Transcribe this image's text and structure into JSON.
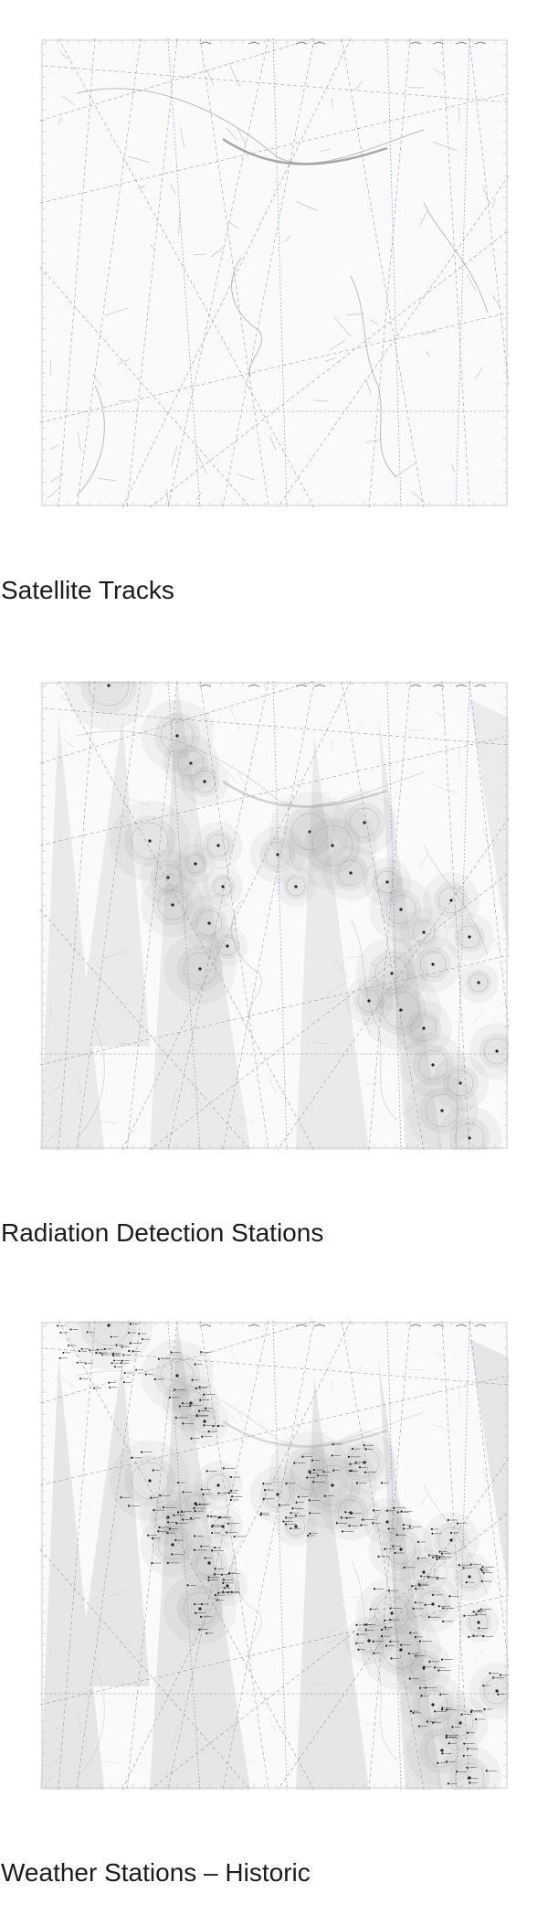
{
  "panels": [
    {
      "caption": "Satellite Tracks",
      "layer": "satellite-tracks"
    },
    {
      "caption": "Radiation Detection Stations",
      "layer": "radiation-stations"
    },
    {
      "caption": "Weather Stations – Historic",
      "layer": "weather-stations"
    }
  ],
  "colors": {
    "track": "#8a8a8a",
    "track_blue": "#6f93b8",
    "terrain": "#b5b5b5",
    "halo": "#9a9a9a",
    "station": "#222222"
  }
}
